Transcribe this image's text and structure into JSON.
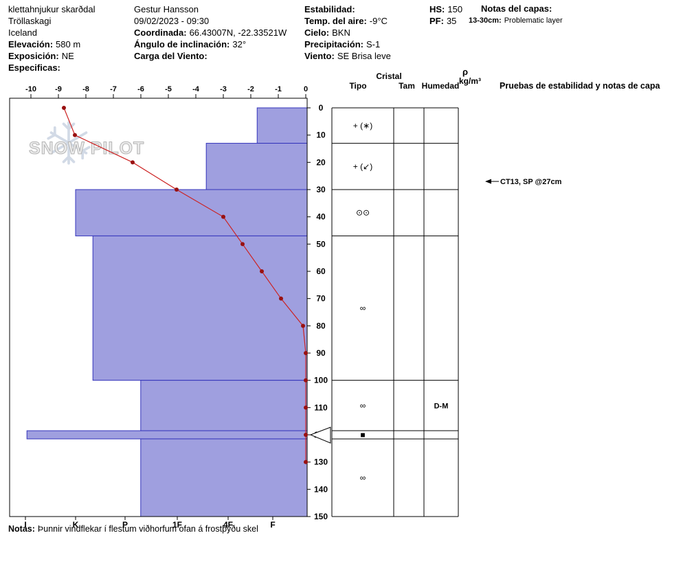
{
  "header": {
    "col1": {
      "line1": "klettahnjukur skarðdal",
      "line2": "Tröllaskagi",
      "line3": "Iceland",
      "elevation_label": "Elevación:",
      "elevation_value": "580 m",
      "aspect_label": "Exposición:",
      "aspect_value": "NE",
      "specifics_label": "Especificas:"
    },
    "col2": {
      "observer": "Gestur Hansson",
      "datetime": "09/02/2023 - 09:30",
      "coord_label": "Coordinada:",
      "coord_value": "66.43007N, -22.33521W",
      "slope_label": "Ángulo de inclinación:",
      "slope_value": "32°",
      "windload_label": "Carga del Viento:"
    },
    "col3": {
      "stability_label": "Estabilidad:",
      "airtemp_label": "Temp. del aire:",
      "airtemp_value": "-9°C",
      "sky_label": "Cielo:",
      "sky_value": "BKN",
      "precip_label": "Precipitación:",
      "precip_value": "S-1",
      "wind_label": "Viento:",
      "wind_value": "SE  Brisa leve"
    },
    "col4": {
      "hs_label": "HS:",
      "hs_value": "150",
      "pf_label": "PF:",
      "pf_value": "35"
    },
    "col5": {
      "title": "Notas del capas:",
      "note_range": "13-30cm:",
      "note_text": "Problematic layer"
    }
  },
  "watermark": "SNOW PILOT",
  "panel_headers": {
    "cristal": "Cristal",
    "tipo": "Tipo",
    "tam": "Tam",
    "humedad": "Humedad",
    "rho": "ρ",
    "rho_units": "kg/m³",
    "tests": "Pruebas de estabilidad y notas de capa"
  },
  "footer": {
    "label": "Notas:",
    "text": "Þunnir vindflekar í flestum viðhorfum ofan á frostþýðu skel"
  },
  "chart_data": {
    "type": "snow-profile",
    "depth_axis": {
      "unit": "cm",
      "min": 0,
      "max": 150,
      "tick_step": 10
    },
    "temp_axis": {
      "unit": "°C",
      "min": -10,
      "max": 0,
      "ticks": [
        -10,
        -9,
        -8,
        -7,
        -6,
        -5,
        -4,
        -3,
        -2,
        -1,
        0
      ]
    },
    "hardness_axis": {
      "labels": [
        "I",
        "K",
        "P",
        "1F",
        "4F",
        "F"
      ]
    },
    "layers": [
      {
        "from_cm": 0,
        "to_cm": 13,
        "hardness": "F+",
        "hardness_index": 1.35,
        "grain_symbol": "+ (∗)",
        "grain_size": "",
        "wetness": "",
        "density": ""
      },
      {
        "from_cm": 13,
        "to_cm": 30,
        "hardness": "4F+",
        "hardness_index": 2.43,
        "grain_symbol": "+ (↙)",
        "grain_size": "",
        "wetness": "",
        "density": ""
      },
      {
        "from_cm": 30,
        "to_cm": 47,
        "hardness": "K",
        "hardness_index": 5.0,
        "grain_symbol": "⊙⊙",
        "grain_size": "",
        "wetness": "",
        "density": ""
      },
      {
        "from_cm": 47,
        "to_cm": 100,
        "hardness": "K-",
        "hardness_index": 4.65,
        "grain_symbol": "∞",
        "grain_size": "",
        "wetness": "",
        "density": ""
      },
      {
        "from_cm": 100,
        "to_cm": 118.5,
        "hardness": "P-",
        "hardness_index": 3.7,
        "grain_symbol": "∞",
        "grain_size": "",
        "wetness": "D-M",
        "density": ""
      },
      {
        "from_cm": 118.5,
        "to_cm": 121.5,
        "hardness": "I",
        "hardness_index": 5.97,
        "grain_symbol": "■",
        "grain_size": "",
        "wetness": "",
        "density": ""
      },
      {
        "from_cm": 121.5,
        "to_cm": 150,
        "hardness": "P-",
        "hardness_index": 3.7,
        "grain_symbol": "∞",
        "grain_size": "",
        "wetness": "",
        "density": ""
      }
    ],
    "temperature_profile": [
      {
        "depth_cm": 0,
        "temp_c": -8.8
      },
      {
        "depth_cm": 10,
        "temp_c": -8.4
      },
      {
        "depth_cm": 20,
        "temp_c": -6.3
      },
      {
        "depth_cm": 30,
        "temp_c": -4.7
      },
      {
        "depth_cm": 40,
        "temp_c": -3.0
      },
      {
        "depth_cm": 50,
        "temp_c": -2.3
      },
      {
        "depth_cm": 60,
        "temp_c": -1.6
      },
      {
        "depth_cm": 70,
        "temp_c": -0.9
      },
      {
        "depth_cm": 80,
        "temp_c": -0.1
      },
      {
        "depth_cm": 90,
        "temp_c": 0
      },
      {
        "depth_cm": 100,
        "temp_c": 0
      },
      {
        "depth_cm": 110,
        "temp_c": 0
      },
      {
        "depth_cm": 120,
        "temp_c": 0
      },
      {
        "depth_cm": 130,
        "temp_c": 0
      }
    ],
    "stability_tests": [
      {
        "depth_cm": 27,
        "label": "CT13, SP @27cm"
      }
    ],
    "marker_depth_cm": 120,
    "colors": {
      "bar_fill": "#9f9fdf",
      "bar_stroke": "#3333bb",
      "temp_line": "#cc2222",
      "temp_dot": "#991111"
    }
  }
}
